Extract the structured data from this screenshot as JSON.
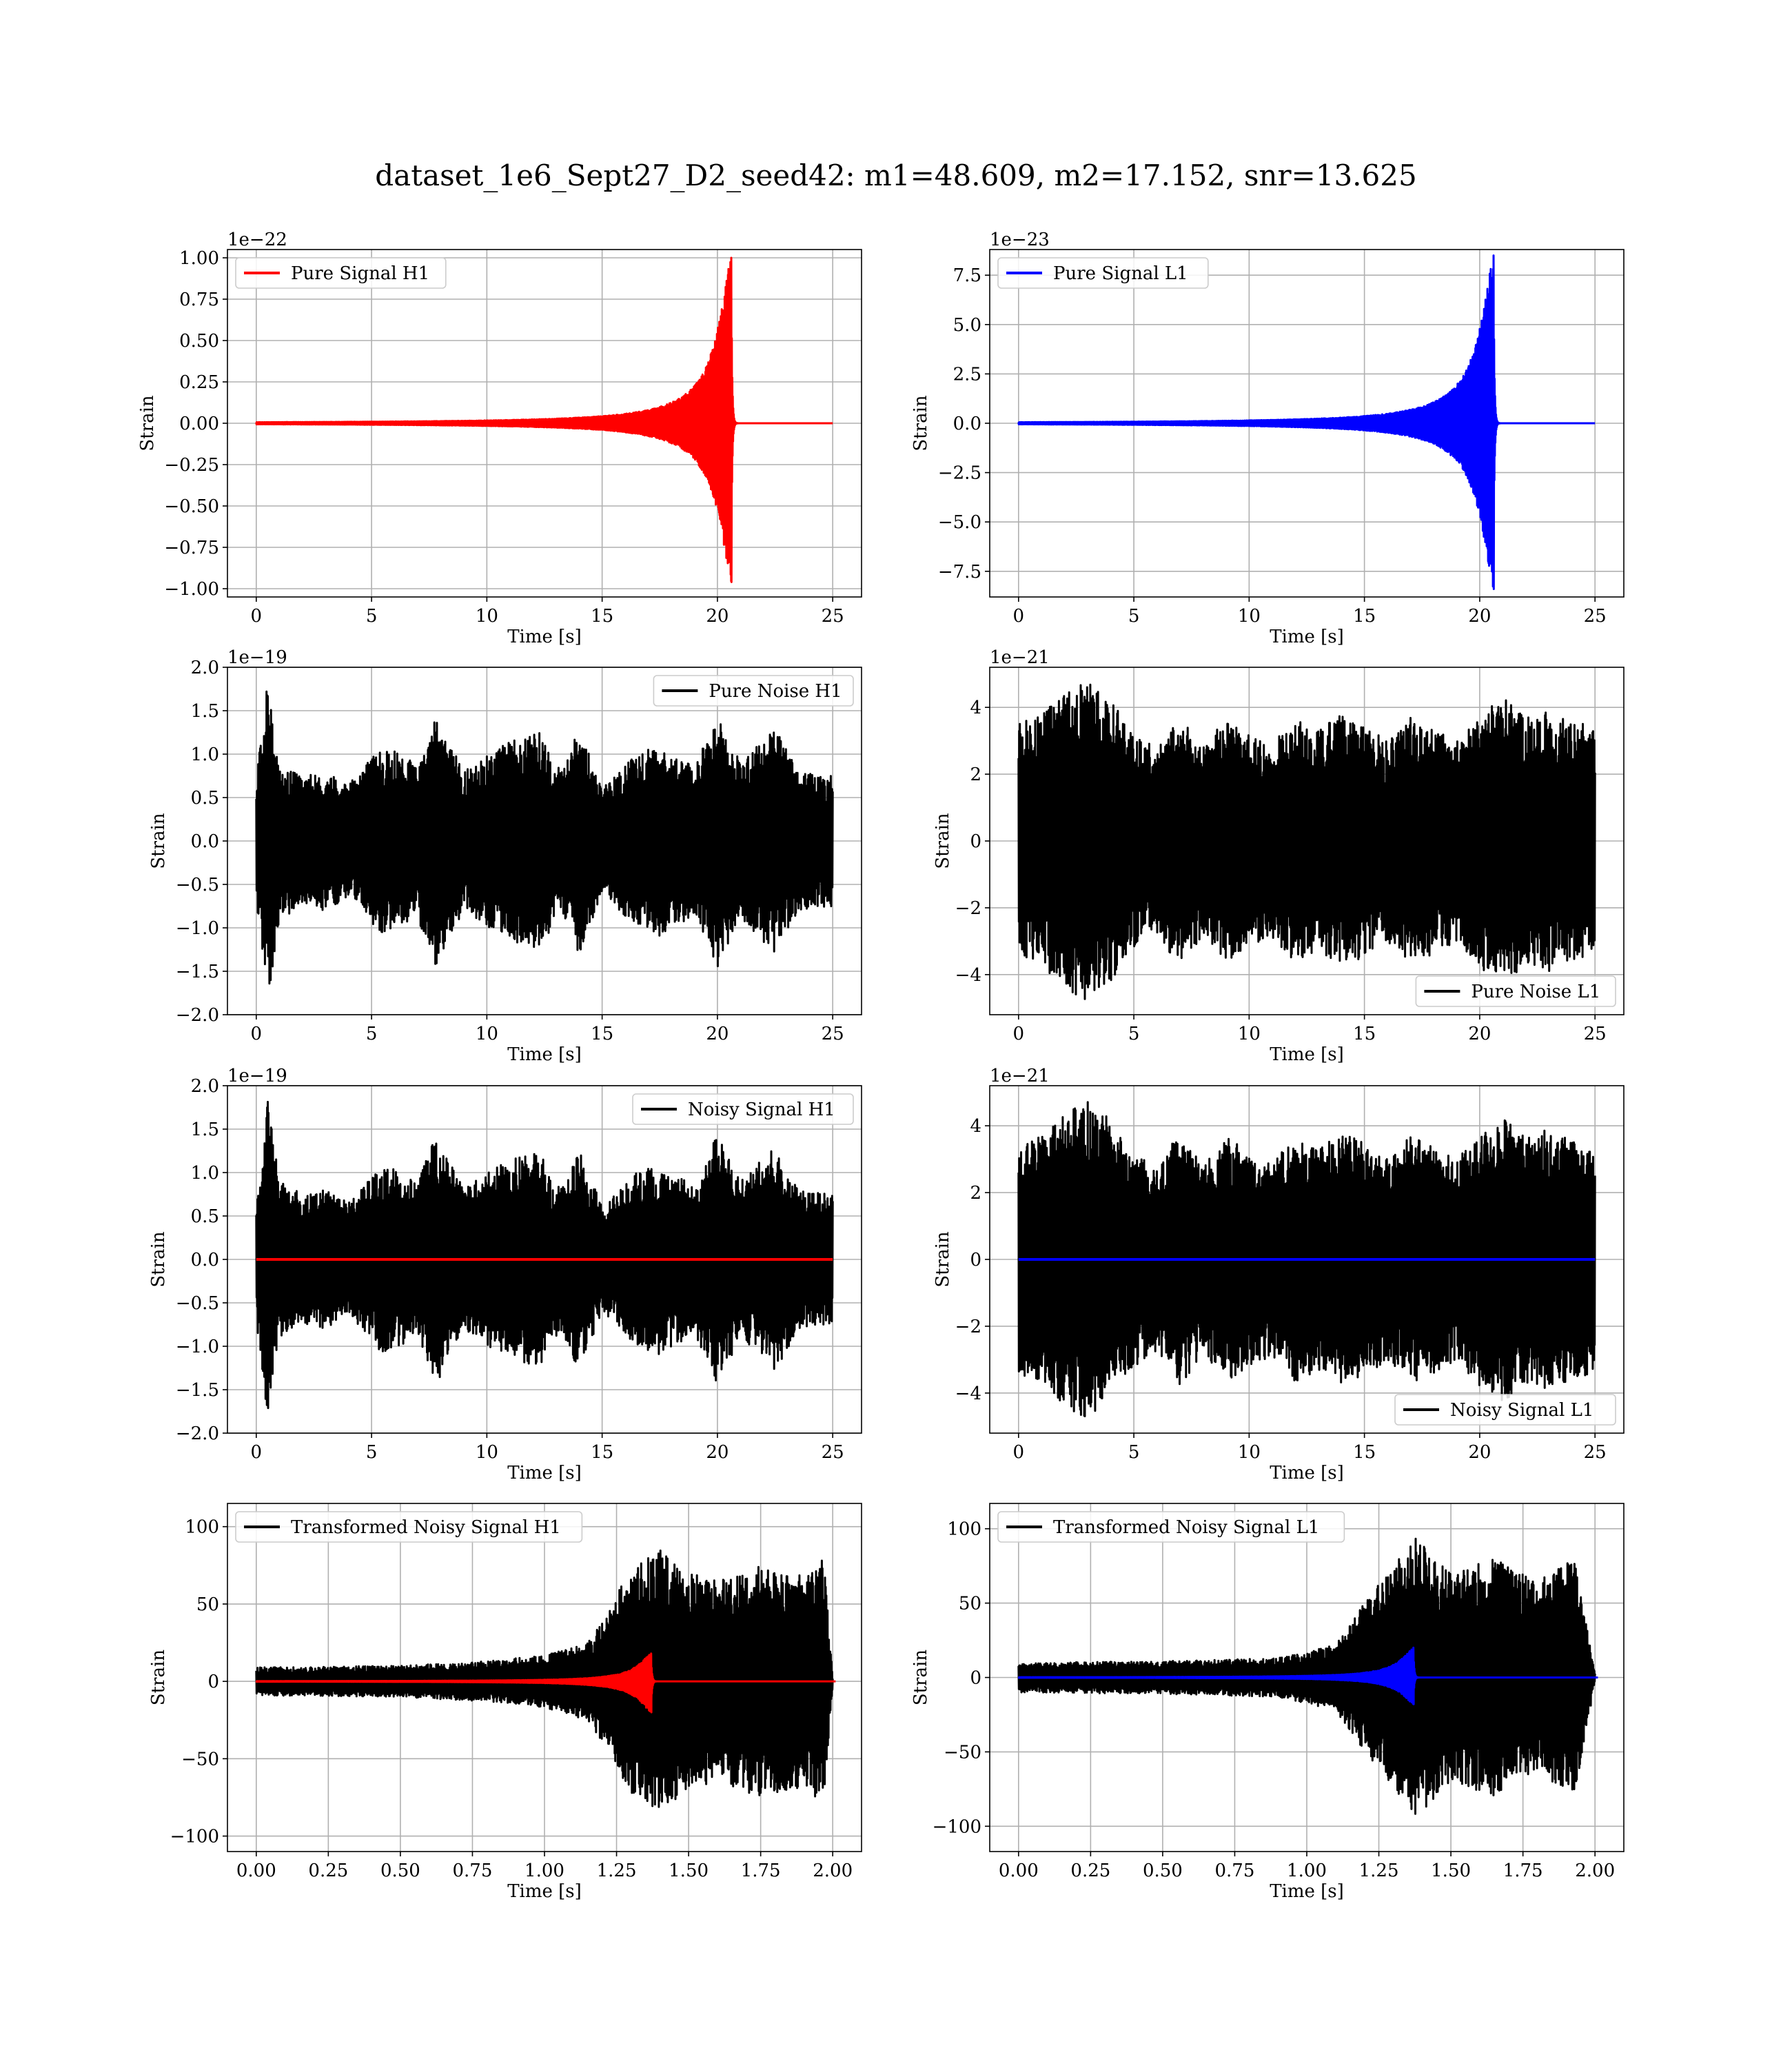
{
  "figure": {
    "title": "dataset_1e6_Sept27_D2_seed42: m1=48.609, m2=17.152, snr=13.625",
    "colors": {
      "black": "#000000",
      "red": "#ff0000",
      "blue": "#0000ff",
      "grid": "#b0b0b0"
    }
  },
  "chart_data": [
    {
      "type": "line",
      "xlabel": "Time [s]",
      "ylabel": "Strain",
      "offset_text": "1e−22",
      "xlim": [
        -1.25,
        26.25
      ],
      "ylim": [
        -1.05,
        1.05
      ],
      "xticks": [
        0,
        5,
        10,
        15,
        20,
        25
      ],
      "xtick_labels": [
        "0",
        "5",
        "10",
        "15",
        "20",
        "25"
      ],
      "yticks": [
        1.0,
        0.75,
        0.5,
        0.25,
        0.0,
        -0.25,
        -0.5,
        -0.75,
        -1.0
      ],
      "ytick_labels": [
        "1.00",
        "0.75",
        "0.50",
        "0.25",
        "0.00",
        "−0.25",
        "−0.50",
        "−0.75",
        "−1.00"
      ],
      "grid": true,
      "legend_loc": "upper-left",
      "series": [
        {
          "name": "Pure Signal H1",
          "color": "#ff0000",
          "kind": "chirp",
          "x_start": 0,
          "x_end": 25,
          "merger_x": 20.6,
          "max": 1.0,
          "min": -0.96
        }
      ]
    },
    {
      "type": "line",
      "xlabel": "Time [s]",
      "ylabel": "Strain",
      "offset_text": "1e−23",
      "xlim": [
        -1.25,
        26.25
      ],
      "ylim": [
        -8.8,
        8.8
      ],
      "xticks": [
        0,
        5,
        10,
        15,
        20,
        25
      ],
      "xtick_labels": [
        "0",
        "5",
        "10",
        "15",
        "20",
        "25"
      ],
      "yticks": [
        7.5,
        5.0,
        2.5,
        0.0,
        -2.5,
        -5.0,
        -7.5
      ],
      "ytick_labels": [
        "7.5",
        "5.0",
        "2.5",
        "0.0",
        "−2.5",
        "−5.0",
        "−7.5"
      ],
      "grid": true,
      "legend_loc": "upper-left",
      "series": [
        {
          "name": "Pure Signal L1",
          "color": "#0000ff",
          "kind": "chirp",
          "x_start": 0,
          "x_end": 25,
          "merger_x": 20.6,
          "max": 8.5,
          "min": -8.4
        }
      ]
    },
    {
      "type": "line",
      "xlabel": "Time [s]",
      "ylabel": "Strain",
      "offset_text": "1e−19",
      "xlim": [
        -1.25,
        26.25
      ],
      "ylim": [
        -2.0,
        2.0
      ],
      "xticks": [
        0,
        5,
        10,
        15,
        20,
        25
      ],
      "xtick_labels": [
        "0",
        "5",
        "10",
        "15",
        "20",
        "25"
      ],
      "yticks": [
        2.0,
        1.5,
        1.0,
        0.5,
        0.0,
        -0.5,
        -1.0,
        -1.5,
        -2.0
      ],
      "ytick_labels": [
        "2.0",
        "1.5",
        "1.0",
        "0.5",
        "0.0",
        "−0.5",
        "−1.0",
        "−1.5",
        "−2.0"
      ],
      "grid": true,
      "legend_loc": "upper-right",
      "series": [
        {
          "name": "Pure Noise H1",
          "color": "#000000",
          "kind": "noise",
          "x_start": 0,
          "x_end": 25,
          "envelope": [
            [
              0,
              0.7
            ],
            [
              0.5,
              1.85
            ],
            [
              1,
              0.9
            ],
            [
              2,
              0.75
            ],
            [
              3,
              0.8
            ],
            [
              4,
              0.65
            ],
            [
              5.5,
              1.1
            ],
            [
              7,
              0.9
            ],
            [
              7.8,
              1.45
            ],
            [
              9,
              0.8
            ],
            [
              10.5,
              1.1
            ],
            [
              12.3,
              1.25
            ],
            [
              13.2,
              0.8
            ],
            [
              14,
              1.3
            ],
            [
              15,
              0.6
            ],
            [
              16.5,
              1.0
            ],
            [
              17.5,
              1.1
            ],
            [
              19,
              0.85
            ],
            [
              20,
              1.45
            ],
            [
              21,
              0.9
            ],
            [
              22.5,
              1.3
            ],
            [
              23.5,
              0.8
            ],
            [
              25,
              0.75
            ]
          ]
        }
      ]
    },
    {
      "type": "line",
      "xlabel": "Time [s]",
      "ylabel": "Strain",
      "offset_text": "1e−21",
      "xlim": [
        -1.25,
        26.25
      ],
      "ylim": [
        -5.2,
        5.2
      ],
      "xticks": [
        0,
        5,
        10,
        15,
        20,
        25
      ],
      "xtick_labels": [
        "0",
        "5",
        "10",
        "15",
        "20",
        "25"
      ],
      "yticks": [
        4,
        2,
        0,
        -2,
        -4
      ],
      "ytick_labels": [
        "4",
        "2",
        "0",
        "−2",
        "−4"
      ],
      "grid": true,
      "legend_loc": "lower-right",
      "series": [
        {
          "name": "Pure Noise L1",
          "color": "#000000",
          "kind": "noise",
          "x_start": 0,
          "x_end": 25,
          "envelope": [
            [
              0,
              3.5
            ],
            [
              1,
              3.8
            ],
            [
              2,
              4.4
            ],
            [
              3,
              4.8
            ],
            [
              4,
              4.2
            ],
            [
              5,
              3.2
            ],
            [
              6,
              2.8
            ],
            [
              7,
              3.8
            ],
            [
              8,
              2.8
            ],
            [
              9,
              3.7
            ],
            [
              10,
              3.2
            ],
            [
              11,
              2.9
            ],
            [
              12,
              3.7
            ],
            [
              13,
              3.3
            ],
            [
              14,
              3.8
            ],
            [
              15,
              3.5
            ],
            [
              16,
              3.0
            ],
            [
              17,
              3.7
            ],
            [
              18,
              3.4
            ],
            [
              19,
              3.0
            ],
            [
              20,
              3.8
            ],
            [
              21,
              4.3
            ],
            [
              22,
              3.7
            ],
            [
              23,
              3.9
            ],
            [
              24,
              3.6
            ],
            [
              25,
              3.4
            ]
          ]
        }
      ]
    },
    {
      "type": "line",
      "xlabel": "Time [s]",
      "ylabel": "Strain",
      "offset_text": "1e−19",
      "xlim": [
        -1.25,
        26.25
      ],
      "ylim": [
        -2.0,
        2.0
      ],
      "xticks": [
        0,
        5,
        10,
        15,
        20,
        25
      ],
      "xtick_labels": [
        "0",
        "5",
        "10",
        "15",
        "20",
        "25"
      ],
      "yticks": [
        2.0,
        1.5,
        1.0,
        0.5,
        0.0,
        -0.5,
        -1.0,
        -1.5,
        -2.0
      ],
      "ytick_labels": [
        "2.0",
        "1.5",
        "1.0",
        "0.5",
        "0.0",
        "−0.5",
        "−1.0",
        "−1.5",
        "−2.0"
      ],
      "grid": true,
      "legend_loc": "upper-right",
      "series": [
        {
          "name": "Noisy Signal H1",
          "color": "#000000",
          "kind": "noise",
          "x_start": 0,
          "x_end": 25,
          "envelope": [
            [
              0,
              0.7
            ],
            [
              0.5,
              1.85
            ],
            [
              1,
              0.9
            ],
            [
              2,
              0.75
            ],
            [
              3,
              0.8
            ],
            [
              4,
              0.65
            ],
            [
              5.5,
              1.1
            ],
            [
              7,
              0.9
            ],
            [
              7.8,
              1.45
            ],
            [
              9,
              0.8
            ],
            [
              10.5,
              1.1
            ],
            [
              12.3,
              1.25
            ],
            [
              13.2,
              0.8
            ],
            [
              14,
              1.3
            ],
            [
              15,
              0.6
            ],
            [
              16.5,
              1.0
            ],
            [
              17.5,
              1.1
            ],
            [
              19,
              0.85
            ],
            [
              20,
              1.45
            ],
            [
              21,
              0.9
            ],
            [
              22.5,
              1.3
            ],
            [
              23.5,
              0.8
            ],
            [
              25,
              0.75
            ]
          ]
        },
        {
          "color": "#ff0000",
          "kind": "flat",
          "x_start": 0,
          "x_end": 25,
          "value": 0
        }
      ]
    },
    {
      "type": "line",
      "xlabel": "Time [s]",
      "ylabel": "Strain",
      "offset_text": "1e−21",
      "xlim": [
        -1.25,
        26.25
      ],
      "ylim": [
        -5.2,
        5.2
      ],
      "xticks": [
        0,
        5,
        10,
        15,
        20,
        25
      ],
      "xtick_labels": [
        "0",
        "5",
        "10",
        "15",
        "20",
        "25"
      ],
      "yticks": [
        4,
        2,
        0,
        -2,
        -4
      ],
      "ytick_labels": [
        "4",
        "2",
        "0",
        "−2",
        "−4"
      ],
      "grid": true,
      "legend_loc": "lower-right",
      "series": [
        {
          "name": "Noisy Signal L1",
          "color": "#000000",
          "kind": "noise",
          "x_start": 0,
          "x_end": 25,
          "envelope": [
            [
              0,
              3.5
            ],
            [
              1,
              3.8
            ],
            [
              2,
              4.4
            ],
            [
              3,
              4.8
            ],
            [
              4,
              4.2
            ],
            [
              5,
              3.2
            ],
            [
              6,
              2.8
            ],
            [
              7,
              3.8
            ],
            [
              8,
              2.8
            ],
            [
              9,
              3.7
            ],
            [
              10,
              3.2
            ],
            [
              11,
              2.9
            ],
            [
              12,
              3.7
            ],
            [
              13,
              3.3
            ],
            [
              14,
              3.8
            ],
            [
              15,
              3.5
            ],
            [
              16,
              3.0
            ],
            [
              17,
              3.7
            ],
            [
              18,
              3.4
            ],
            [
              19,
              3.0
            ],
            [
              20,
              3.8
            ],
            [
              21,
              4.3
            ],
            [
              22,
              3.7
            ],
            [
              23,
              3.9
            ],
            [
              24,
              3.6
            ],
            [
              25,
              3.4
            ]
          ]
        },
        {
          "color": "#0000ff",
          "kind": "flat",
          "x_start": 0,
          "x_end": 25,
          "value": 0
        }
      ]
    },
    {
      "type": "line",
      "xlabel": "Time [s]",
      "ylabel": "Strain",
      "offset_text": "",
      "xlim": [
        -0.1,
        2.1
      ],
      "ylim": [
        -110,
        115
      ],
      "xticks": [
        0,
        0.25,
        0.5,
        0.75,
        1.0,
        1.25,
        1.5,
        1.75,
        2.0
      ],
      "xtick_labels": [
        "0.00",
        "0.25",
        "0.50",
        "0.75",
        "1.00",
        "1.25",
        "1.50",
        "1.75",
        "2.00"
      ],
      "yticks": [
        100,
        50,
        0,
        -50,
        -100
      ],
      "ytick_labels": [
        "100",
        "50",
        "0",
        "−50",
        "−100"
      ],
      "grid": true,
      "legend_loc": "upper-left",
      "series": [
        {
          "name": "Transformed Noisy Signal H1",
          "color": "#000000",
          "kind": "noise",
          "x_start": 0,
          "x_end": 2.0,
          "envelope": [
            [
              0,
              9
            ],
            [
              0.5,
              10
            ],
            [
              0.8,
              13
            ],
            [
              1.0,
              17
            ],
            [
              1.15,
              25
            ],
            [
              1.22,
              45
            ],
            [
              1.3,
              75
            ],
            [
              1.4,
              85
            ],
            [
              1.5,
              70
            ],
            [
              1.6,
              65
            ],
            [
              1.75,
              75
            ],
            [
              1.9,
              68
            ],
            [
              1.97,
              80
            ],
            [
              2.0,
              3
            ]
          ]
        },
        {
          "color": "#ff0000",
          "kind": "chirp",
          "x_start": 0,
          "x_end": 2.01,
          "merger_x": 1.37,
          "max": 18,
          "min": -20
        }
      ]
    },
    {
      "type": "line",
      "xlabel": "Time [s]",
      "ylabel": "Strain",
      "offset_text": "",
      "xlim": [
        -0.1,
        2.1
      ],
      "ylim": [
        -117,
        117
      ],
      "xticks": [
        0,
        0.25,
        0.5,
        0.75,
        1.0,
        1.25,
        1.5,
        1.75,
        2.0
      ],
      "xtick_labels": [
        "0.00",
        "0.25",
        "0.50",
        "0.75",
        "1.00",
        "1.25",
        "1.50",
        "1.75",
        "2.00"
      ],
      "yticks": [
        100,
        50,
        0,
        -50,
        -100
      ],
      "ytick_labels": [
        "100",
        "50",
        "0",
        "−50",
        "−100"
      ],
      "grid": true,
      "legend_loc": "upper-left",
      "series": [
        {
          "name": "Transformed Noisy Signal L1",
          "color": "#000000",
          "kind": "noise",
          "x_start": 0,
          "x_end": 2.0,
          "envelope": [
            [
              0,
              10
            ],
            [
              0.5,
              11
            ],
            [
              0.9,
              13
            ],
            [
              1.1,
              22
            ],
            [
              1.2,
              50
            ],
            [
              1.3,
              75
            ],
            [
              1.38,
              95
            ],
            [
              1.5,
              70
            ],
            [
              1.65,
              80
            ],
            [
              1.8,
              65
            ],
            [
              1.93,
              80
            ],
            [
              2.0,
              3
            ]
          ]
        },
        {
          "color": "#0000ff",
          "kind": "chirp",
          "x_start": 0,
          "x_end": 2.01,
          "merger_x": 1.37,
          "max": 20,
          "min": -18
        }
      ]
    }
  ]
}
